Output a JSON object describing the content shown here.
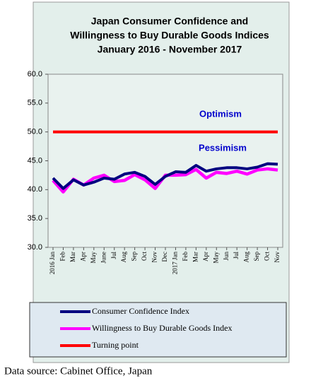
{
  "chart_data": {
    "type": "line",
    "title": [
      "Japan Consumer Confidence and",
      "Willingness to Buy Durable Goods Indices",
      "January 2016 - November   2017"
    ],
    "categories": [
      "2016 Jan",
      "Feb",
      "Mar",
      "Apr",
      "May",
      "June",
      "Jul",
      "Aug",
      "Sep",
      "Oct",
      "Nov",
      "Dec",
      "2017 Jan",
      "Feb",
      "Mar",
      "Apr",
      "May",
      "Jun",
      "Jul",
      "Aug",
      "Sep",
      "Oct",
      "Nov"
    ],
    "series": [
      {
        "name": "Consumer Confidence Index",
        "color": "#000080",
        "values": [
          42.0,
          40.2,
          41.7,
          40.8,
          41.3,
          42.0,
          41.8,
          42.7,
          43.0,
          42.3,
          40.9,
          42.3,
          43.1,
          43.0,
          44.2,
          43.2,
          43.6,
          43.8,
          43.8,
          43.6,
          43.9,
          44.5,
          44.4
        ]
      },
      {
        "name": "Willingness to Buy Durable Goods Index",
        "color": "#ff00ff",
        "values": [
          41.6,
          39.6,
          41.8,
          40.8,
          42.0,
          42.5,
          41.4,
          41.6,
          42.6,
          41.7,
          40.2,
          42.5,
          42.5,
          42.6,
          43.5,
          42.0,
          43.0,
          42.8,
          43.2,
          42.7,
          43.4,
          43.6,
          43.4
        ]
      },
      {
        "name": "Turning point",
        "color": "#ff0000",
        "values": [
          50,
          50,
          50,
          50,
          50,
          50,
          50,
          50,
          50,
          50,
          50,
          50,
          50,
          50,
          50,
          50,
          50,
          50,
          50,
          50,
          50,
          50,
          50
        ]
      }
    ],
    "ylim": [
      30,
      60
    ],
    "yticks": [
      {
        "value": 30,
        "label": "30.0"
      },
      {
        "value": 35,
        "label": "35.0"
      },
      {
        "value": 40,
        "label": "40.0"
      },
      {
        "value": 45,
        "label": "45.0"
      },
      {
        "value": 50,
        "label": "50.0"
      },
      {
        "value": 55,
        "label": "55.0"
      },
      {
        "value": 60,
        "label": "60.0"
      }
    ],
    "annotations": [
      "Optimism",
      "Pessimism"
    ],
    "source": "Data source: Cabinet Office, Japan"
  }
}
